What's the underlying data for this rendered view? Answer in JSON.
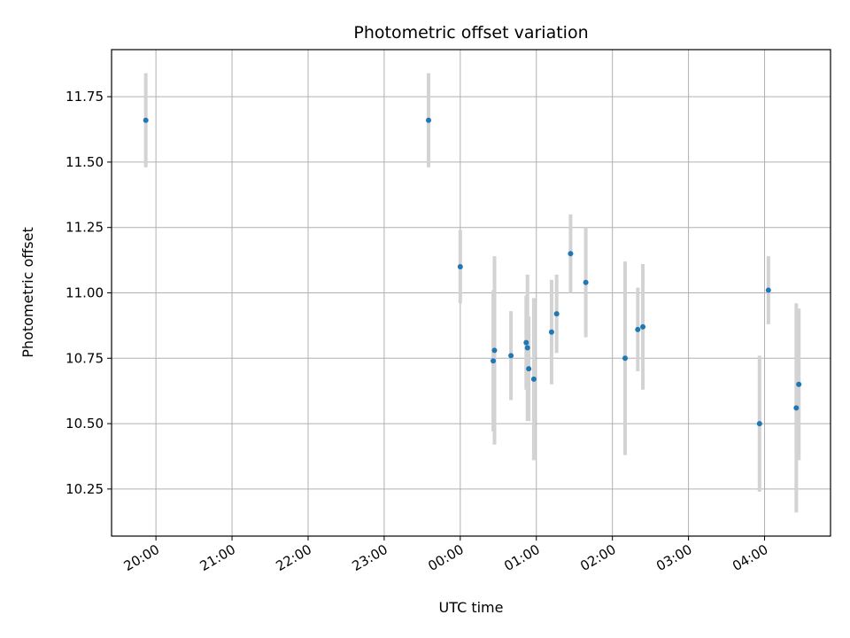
{
  "chart_data": {
    "type": "scatter",
    "title": "Photometric offset variation",
    "xlabel": "UTC time",
    "ylabel": "Photometric offset",
    "x_tick_labels": [
      "20:00",
      "21:00",
      "22:00",
      "23:00",
      "00:00",
      "01:00",
      "02:00",
      "03:00",
      "04:00"
    ],
    "y_tick_labels": [
      "10.25",
      "10.50",
      "10.75",
      "11.00",
      "11.25",
      "11.50",
      "11.75"
    ],
    "xlim": [
      "19:25",
      "04:52"
    ],
    "ylim": [
      10.07,
      11.93
    ],
    "grid": true,
    "colors": {
      "points": "#1f77b4",
      "error_bars": "#d3d3d3",
      "grid": "#b0b0b0"
    },
    "points": [
      {
        "x": "19:52",
        "y": 11.66,
        "err": 0.18
      },
      {
        "x": "23:35",
        "y": 11.66,
        "err": 0.18
      },
      {
        "x": "00:00",
        "y": 11.1,
        "err": 0.14
      },
      {
        "x": "00:26",
        "y": 10.74,
        "err": 0.27
      },
      {
        "x": "00:27",
        "y": 10.78,
        "err": 0.36
      },
      {
        "x": "00:40",
        "y": 10.76,
        "err": 0.17
      },
      {
        "x": "00:52",
        "y": 10.81,
        "err": 0.18
      },
      {
        "x": "00:53",
        "y": 10.79,
        "err": 0.28
      },
      {
        "x": "00:54",
        "y": 10.71,
        "err": 0.2
      },
      {
        "x": "00:58",
        "y": 10.67,
        "err": 0.31
      },
      {
        "x": "01:12",
        "y": 10.85,
        "err": 0.2
      },
      {
        "x": "01:16",
        "y": 10.92,
        "err": 0.15
      },
      {
        "x": "01:27",
        "y": 11.15,
        "err": 0.15
      },
      {
        "x": "01:39",
        "y": 11.04,
        "err": 0.21
      },
      {
        "x": "02:10",
        "y": 10.75,
        "err": 0.37
      },
      {
        "x": "02:20",
        "y": 10.86,
        "err": 0.16
      },
      {
        "x": "02:24",
        "y": 10.87,
        "err": 0.24
      },
      {
        "x": "03:56",
        "y": 10.5,
        "err": 0.26
      },
      {
        "x": "04:03",
        "y": 11.01,
        "err": 0.13
      },
      {
        "x": "04:25",
        "y": 10.56,
        "err": 0.4
      },
      {
        "x": "04:27",
        "y": 10.65,
        "err": 0.29
      }
    ]
  }
}
